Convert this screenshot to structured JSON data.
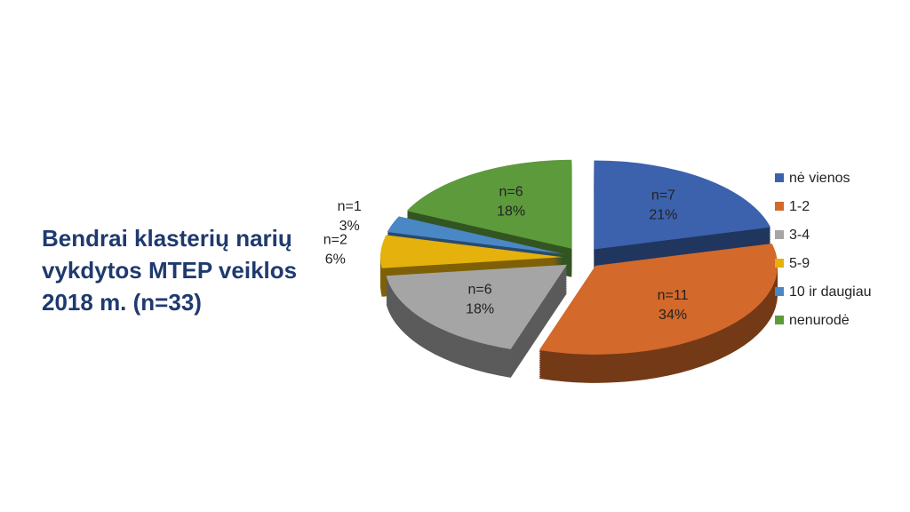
{
  "chart_data": {
    "type": "pie",
    "title": "Bendrai klasterių narių vykdytos MTEP veiklos 2018 m. (n=33)",
    "categories": [
      "nė vienos",
      "1-2",
      "3-4",
      "5-9",
      "10 ir daugiau",
      "nenurodė"
    ],
    "values": [
      21,
      34,
      18,
      6,
      3,
      18
    ],
    "value_labels": [
      "21%",
      "34%",
      "18%",
      "6%",
      "3%",
      "18%"
    ],
    "counts": [
      7,
      11,
      6,
      2,
      1,
      6
    ],
    "count_labels": [
      "n=7",
      "n=11",
      "n=6",
      "n=2",
      "n=1",
      "n=6"
    ],
    "colors": [
      "#3c62ad",
      "#d3692a",
      "#a5a5a5",
      "#e5b10c",
      "#4a87c5",
      "#5c9a3c"
    ],
    "legend": "right"
  }
}
